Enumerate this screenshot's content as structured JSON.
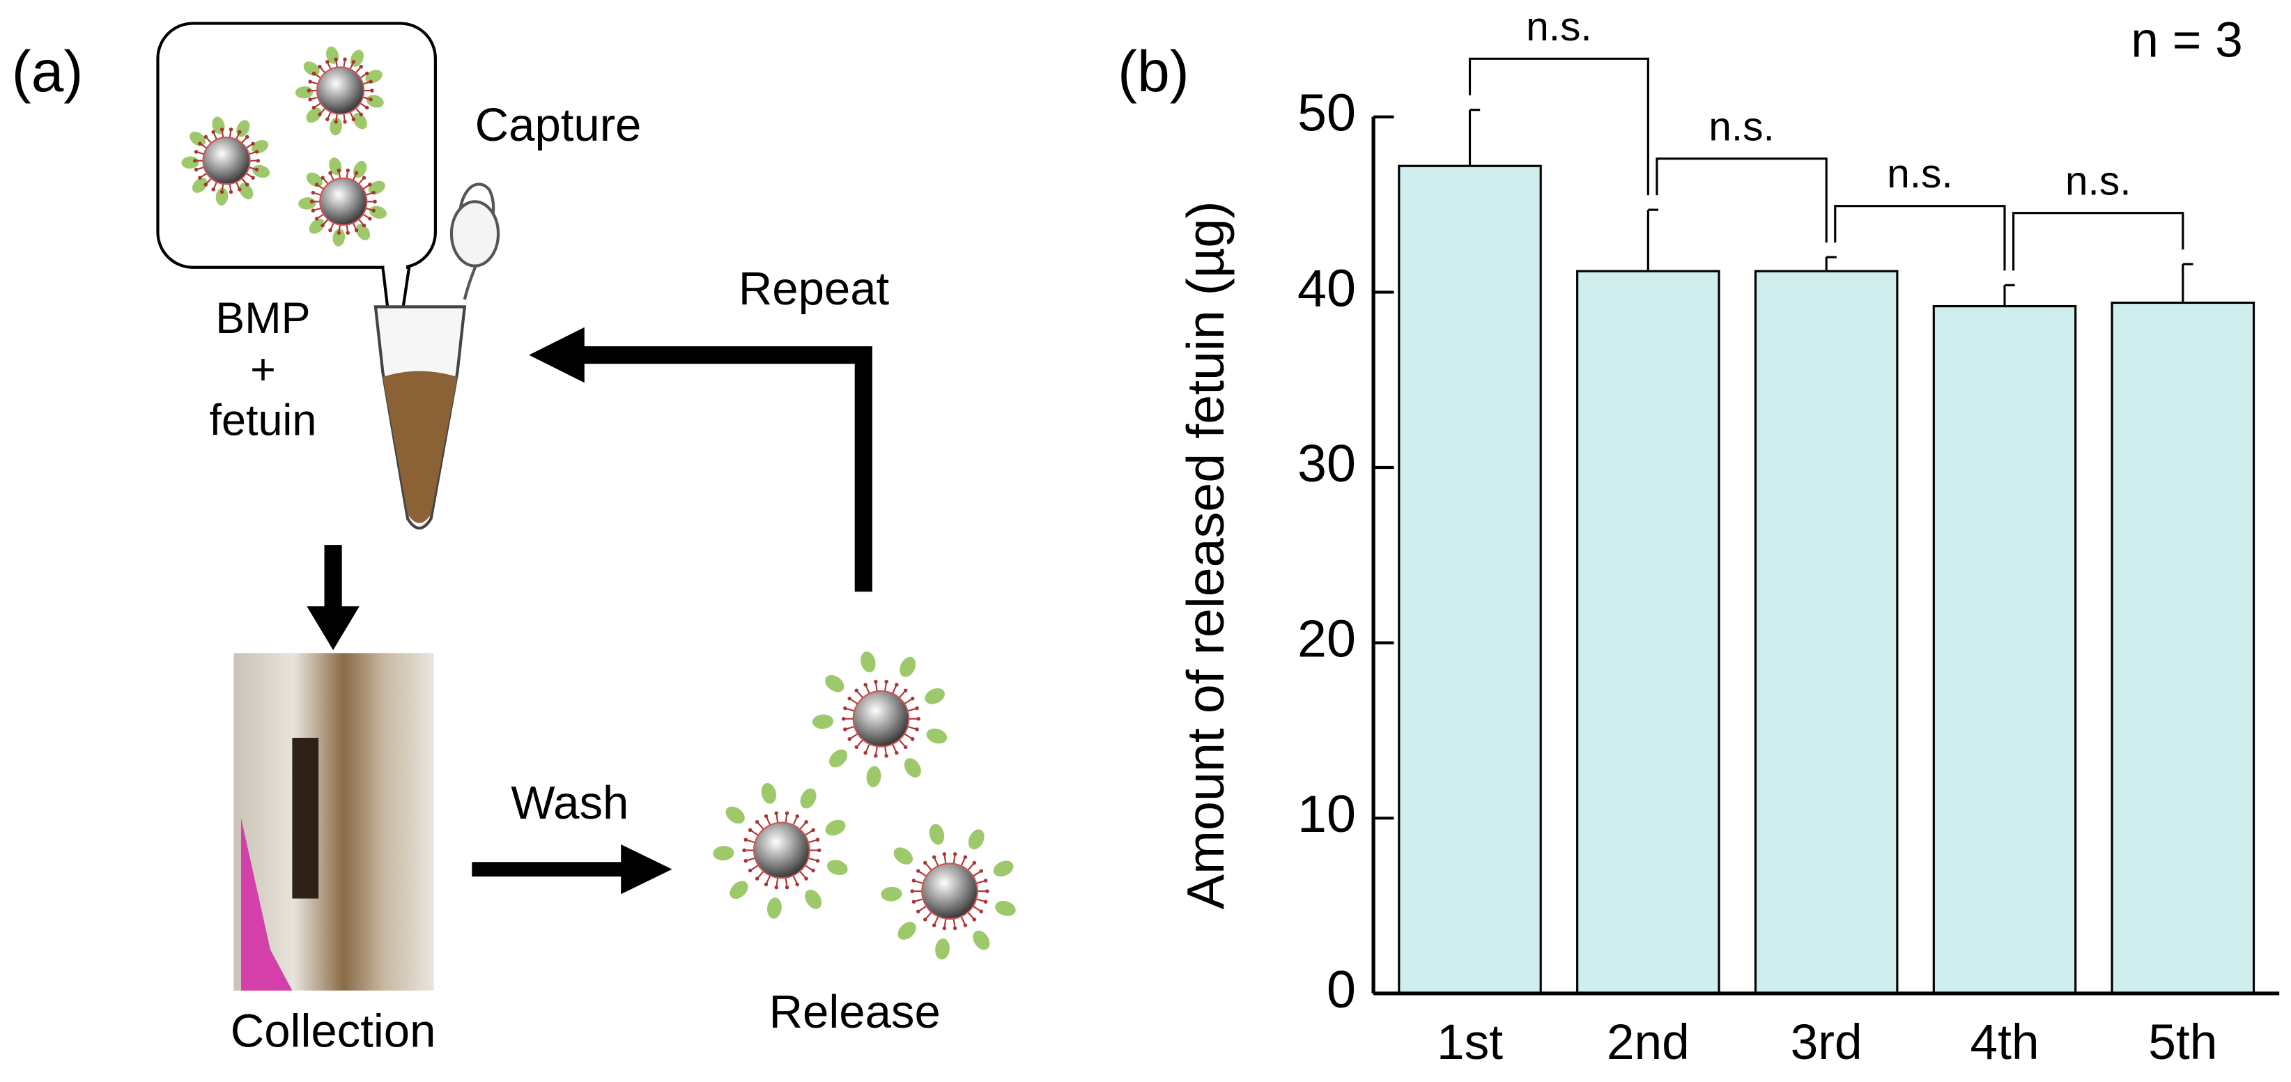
{
  "panel_a": {
    "label": "(a)",
    "capture": "Capture",
    "bmp": "BMP",
    "plus": "+",
    "fetuin": "fetuin",
    "repeat": "Repeat",
    "wash": "Wash",
    "collection": "Collection",
    "release": "Release"
  },
  "chart_data": {
    "type": "bar",
    "panel_label": "(b)",
    "annotation": "n = 3",
    "y_label": "Amount of released fetuin (µg)",
    "categories": [
      "1st",
      "2nd",
      "3rd",
      "4th",
      "5th"
    ],
    "series": [
      {
        "color": "#d0eeee",
        "values": [
          47.2,
          41.2,
          41.2,
          39.2,
          39.4
        ],
        "errors": [
          3.2,
          3.5,
          0.8,
          1.2,
          2.2
        ]
      }
    ],
    "ylim": [
      0,
      50
    ],
    "yticks": [
      0,
      10,
      20,
      30,
      40,
      50
    ],
    "comparisons": [
      {
        "pair": [
          0,
          1
        ],
        "label": "n.s."
      },
      {
        "pair": [
          1,
          2
        ],
        "label": "n.s."
      },
      {
        "pair": [
          2,
          3
        ],
        "label": "n.s."
      },
      {
        "pair": [
          3,
          4
        ],
        "label": "n.s."
      }
    ]
  }
}
